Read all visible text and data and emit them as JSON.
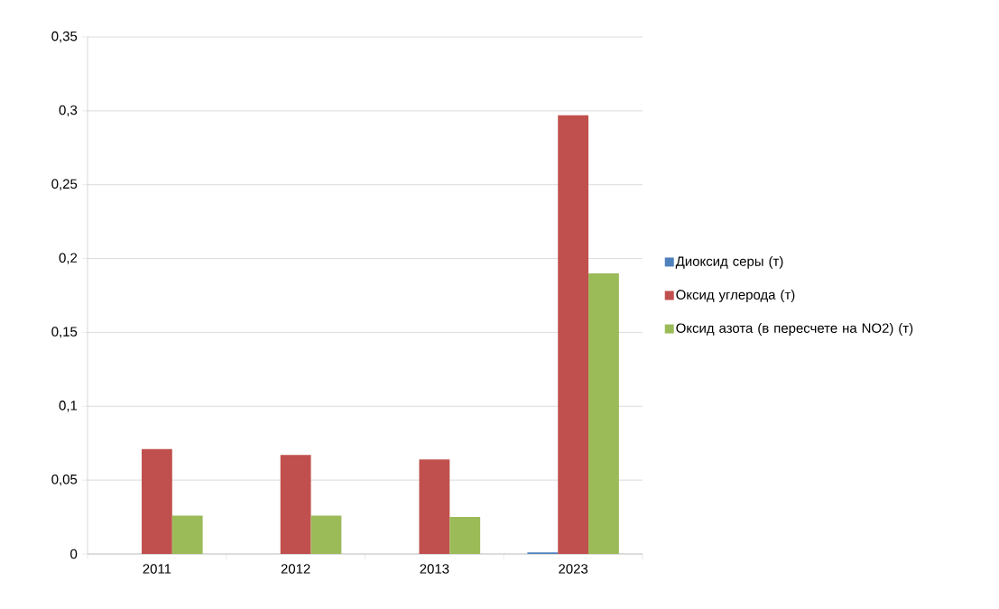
{
  "chart_data": {
    "type": "bar",
    "categories": [
      "2011",
      "2012",
      "2013",
      "2023"
    ],
    "series": [
      {
        "name": "Диоксид серы (т)",
        "color": "#4f81bd",
        "values": [
          0,
          0,
          0,
          0.001
        ]
      },
      {
        "name": "Оксид углерода (т)",
        "color": "#c0504d",
        "values": [
          0.071,
          0.067,
          0.064,
          0.297
        ]
      },
      {
        "name": "Оксид азота (в пересчете на NO2) (т)",
        "color": "#9bbb59",
        "values": [
          0.026,
          0.026,
          0.025,
          0.19
        ]
      }
    ],
    "ylim": [
      0,
      0.35
    ],
    "yticks": [
      0,
      {
        "value": 0.05,
        "label": "0,05"
      },
      {
        "value": 0.1,
        "label": "0,1"
      },
      {
        "value": 0.15,
        "label": "0,15"
      },
      {
        "value": 0.2,
        "label": "0,2"
      },
      {
        "value": 0.25,
        "label": "0,25"
      },
      {
        "value": 0.3,
        "label": "0,3"
      },
      {
        "value": 0.35,
        "label": "0,35"
      }
    ],
    "grid": "y",
    "legend": "right"
  }
}
